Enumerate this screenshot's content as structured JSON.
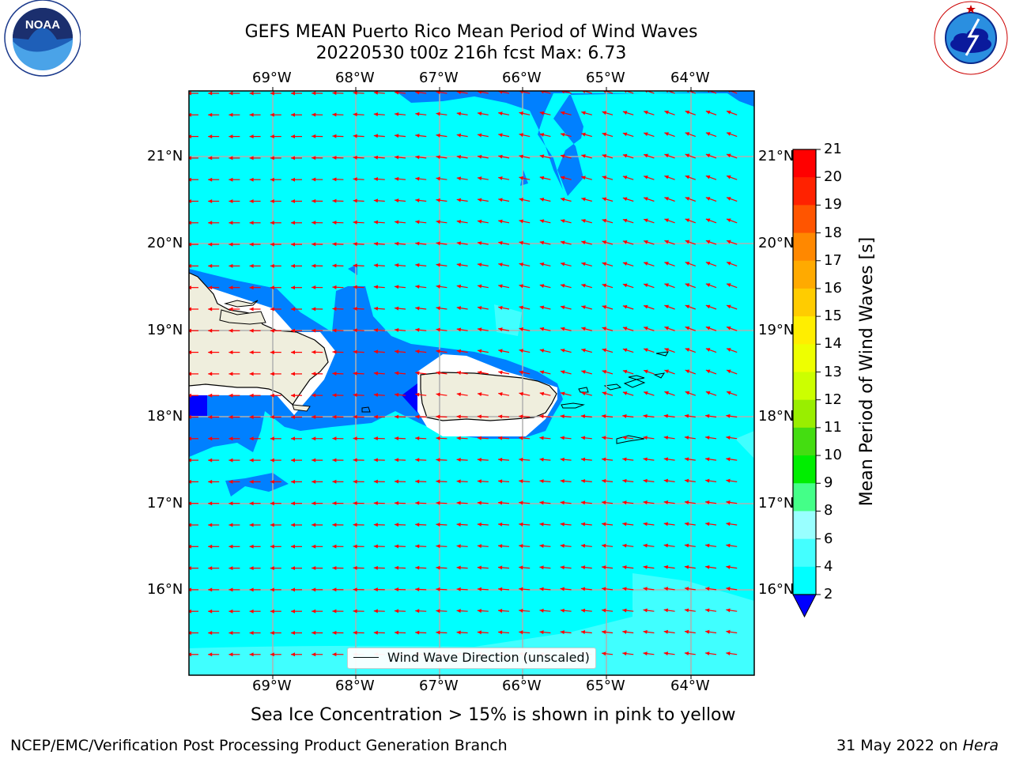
{
  "header": {
    "title_line1": "GEFS MEAN Puerto Rico Mean Period of Wind Waves",
    "title_line2": "20220530 t00z 216h fcst   Max: 6.73"
  },
  "logos": {
    "left": "NOAA",
    "left_ring_text": "NATIONAL OCEANIC AND ATMOSPHERIC ADMINISTRATION · U.S. DEPARTMENT OF COMMERCE",
    "right_ring_text": "NATIONAL WEATHER SERVICE"
  },
  "map": {
    "lon_labels": [
      "69°W",
      "68°W",
      "67°W",
      "66°W",
      "65°W",
      "64°W"
    ],
    "lat_labels": [
      "21°N",
      "20°N",
      "19°N",
      "18°N",
      "17°N",
      "16°N"
    ],
    "legend_label": "Wind Wave Direction (unscaled)",
    "colors": {
      "ocean": "#00ffff",
      "low_period": "#0080ff",
      "very_low": "#0000ff",
      "light_band": "#40ffff",
      "land": "#efeedd",
      "arrows": "#ff0000"
    }
  },
  "colorbar": {
    "label": "Mean Period of Wind Waves [s]",
    "tick_labels": [
      "21",
      "20",
      "19",
      "18",
      "17",
      "16",
      "15",
      "14",
      "13",
      "12",
      "11",
      "10",
      "9",
      "8",
      "6",
      "4",
      "2"
    ],
    "colors": [
      "#ff0000",
      "#ff2200",
      "#ff5500",
      "#ff8800",
      "#ffaa00",
      "#ffcc00",
      "#ffee00",
      "#eeff00",
      "#ccff00",
      "#99ee00",
      "#44dd11",
      "#00ee00",
      "#44ff88",
      "#99ffff",
      "#44ffff",
      "#00ffff",
      "#0080ff"
    ],
    "extend_color": "#0000ff"
  },
  "footer": {
    "sea_ice_note": "Sea Ice Concentration > 15% is shown in pink to yellow",
    "branch": "NCEP/EMC/Verification Post Processing Product Generation Branch",
    "date": "31 May 2022 on ",
    "system": "Hera"
  }
}
